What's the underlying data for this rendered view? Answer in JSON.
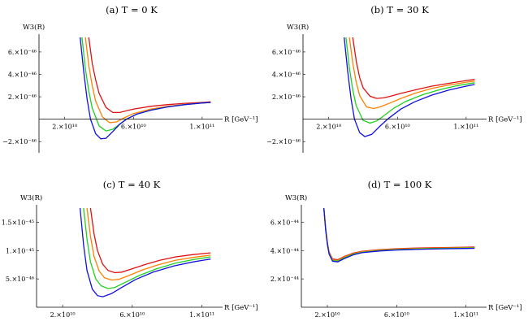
{
  "chart_data": [
    {
      "type": "line",
      "title": "(a) T = 0 K",
      "ylabel": "W3(R)",
      "xlabel": "R [GeV⁻¹]",
      "x_ticks": [
        {
          "value": 20000000000.0,
          "label": "2.×10¹⁰"
        },
        {
          "value": 60000000000.0,
          "label": "6.×10¹⁰"
        },
        {
          "value": 100000000000.0,
          "label": "1.×10¹¹"
        }
      ],
      "y_ticks": [
        {
          "value": -2e-46,
          "label": "−2.×10⁻⁴⁶"
        },
        {
          "value": 2e-46,
          "label": "2.×10⁻⁴⁶"
        },
        {
          "value": 4e-46,
          "label": "4.×10⁻⁴⁶"
        },
        {
          "value": 6e-46,
          "label": "6.×10⁻⁴⁶"
        }
      ],
      "xlim": [
        5000000000.0,
        110000000000.0
      ],
      "ylim": [
        -3e-46,
        7.3e-46
      ],
      "series": [
        {
          "color": "#e01010",
          "x": [
            34000000000.0,
            36000000000.0,
            38000000000.0,
            40000000000.0,
            44000000000.0,
            48000000000.0,
            52000000000.0,
            56000000000.0,
            60000000000.0,
            70000000000.0,
            80000000000.0,
            90000000000.0,
            100000000000.0,
            105000000000.0
          ],
          "y": [
            7.3e-46,
            5e-46,
            3.5e-46,
            2.3e-46,
            1.05e-46,
            6e-47,
            6e-47,
            7.5e-47,
            9e-47,
            1.15e-46,
            1.3e-46,
            1.42e-46,
            1.5e-46,
            1.55e-46
          ]
        },
        {
          "color": "#ff8000",
          "x": [
            32000000000.0,
            34000000000.0,
            36000000000.0,
            38000000000.0,
            42000000000.0,
            46000000000.0,
            50000000000.0,
            55000000000.0,
            60000000000.0,
            70000000000.0,
            80000000000.0,
            90000000000.0,
            100000000000.0,
            105000000000.0
          ],
          "y": [
            7.3e-46,
            4.8e-46,
            3e-46,
            1.6e-46,
            2e-47,
            -3e-47,
            -2.5e-47,
            1.5e-47,
            5e-47,
            9e-47,
            1.15e-46,
            1.32e-46,
            1.45e-46,
            1.5e-46
          ]
        },
        {
          "color": "#20d020",
          "x": [
            30000000000.0,
            32000000000.0,
            34000000000.0,
            36000000000.0,
            40000000000.0,
            44000000000.0,
            48000000000.0,
            52000000000.0,
            56000000000.0,
            62000000000.0,
            70000000000.0,
            80000000000.0,
            90000000000.0,
            100000000000.0,
            105000000000.0
          ],
          "y": [
            7.3e-46,
            4.5e-46,
            2.5e-46,
            1e-46,
            -6e-47,
            -1.05e-46,
            -9e-47,
            -4.5e-47,
            0.0,
            4.5e-47,
            8e-47,
            1.1e-46,
            1.3e-46,
            1.45e-46,
            1.5e-46
          ]
        },
        {
          "color": "#1010e0",
          "x": [
            29000000000.0,
            31000000000.0,
            33000000000.0,
            35000000000.0,
            38000000000.0,
            41000000000.0,
            44000000000.0,
            48000000000.0,
            52000000000.0,
            56000000000.0,
            62000000000.0,
            70000000000.0,
            80000000000.0,
            90000000000.0,
            100000000000.0,
            105000000000.0
          ],
          "y": [
            7.3e-46,
            4.3e-46,
            1.8e-46,
            0.0,
            -1.3e-46,
            -1.75e-46,
            -1.7e-46,
            -1.1e-46,
            -4.5e-47,
            0.0,
            4.5e-47,
            8e-47,
            1.1e-46,
            1.3e-46,
            1.45e-46,
            1.5e-46
          ]
        }
      ]
    },
    {
      "type": "line",
      "title": "(b) T = 30 K",
      "ylabel": "W3(R)",
      "xlabel": "R [GeV⁻¹]",
      "x_ticks": [
        {
          "value": 20000000000.0,
          "label": "2.×10¹⁰"
        },
        {
          "value": 60000000000.0,
          "label": "6.×10¹⁰"
        },
        {
          "value": 100000000000.0,
          "label": "1.×10¹¹"
        }
      ],
      "y_ticks": [
        {
          "value": -2e-46,
          "label": "−2.×10⁻⁴⁶"
        },
        {
          "value": 2e-46,
          "label": "2.×10⁻⁴⁶"
        },
        {
          "value": 4e-46,
          "label": "4.×10⁻⁴⁶"
        },
        {
          "value": 6e-46,
          "label": "6.×10⁻⁴⁶"
        }
      ],
      "xlim": [
        5000000000.0,
        110000000000.0
      ],
      "ylim": [
        -3e-46,
        7.3e-46
      ],
      "series": [
        {
          "color": "#e01010",
          "x": [
            34000000000.0,
            36000000000.0,
            38000000000.0,
            40000000000.0,
            44000000000.0,
            48000000000.0,
            52000000000.0,
            56000000000.0,
            62000000000.0,
            70000000000.0,
            80000000000.0,
            90000000000.0,
            100000000000.0,
            105000000000.0
          ],
          "y": [
            7.3e-46,
            5.2e-46,
            3.7e-46,
            2.8e-46,
            2.05e-46,
            1.85e-46,
            1.9e-46,
            2.05e-46,
            2.3e-46,
            2.6e-46,
            2.95e-46,
            3.2e-46,
            3.45e-46,
            3.55e-46
          ]
        },
        {
          "color": "#ff8000",
          "x": [
            32000000000.0,
            34000000000.0,
            36000000000.0,
            38000000000.0,
            42000000000.0,
            46000000000.0,
            50000000000.0,
            55000000000.0,
            62000000000.0,
            70000000000.0,
            80000000000.0,
            90000000000.0,
            100000000000.0,
            105000000000.0
          ],
          "y": [
            7.3e-46,
            5e-46,
            3.3e-46,
            2.1e-46,
            1.1e-46,
            9.5e-47,
            1.1e-46,
            1.4e-46,
            1.85e-46,
            2.3e-46,
            2.75e-46,
            3.05e-46,
            3.3e-46,
            3.4e-46
          ]
        },
        {
          "color": "#20d020",
          "x": [
            30000000000.0,
            32000000000.0,
            34000000000.0,
            36000000000.0,
            40000000000.0,
            44000000000.0,
            48000000000.0,
            52000000000.0,
            58000000000.0,
            65000000000.0,
            75000000000.0,
            85000000000.0,
            95000000000.0,
            105000000000.0
          ],
          "y": [
            7.3e-46,
            4.6e-46,
            2.6e-46,
            1.2e-46,
            -1e-47,
            -3.5e-47,
            -1.5e-47,
            3e-47,
            1e-46,
            1.6e-46,
            2.2e-46,
            2.65e-46,
            3e-46,
            3.25e-46
          ]
        },
        {
          "color": "#1010e0",
          "x": [
            29000000000.0,
            31000000000.0,
            33000000000.0,
            35000000000.0,
            38000000000.0,
            41000000000.0,
            45000000000.0,
            50000000000.0,
            55000000000.0,
            62000000000.0,
            70000000000.0,
            80000000000.0,
            90000000000.0,
            100000000000.0,
            105000000000.0
          ],
          "y": [
            7.3e-46,
            4.3e-46,
            1.8e-46,
            0.0,
            -1.2e-46,
            -1.55e-46,
            -1.35e-46,
            -6e-47,
            1e-47,
            9e-47,
            1.55e-46,
            2.15e-46,
            2.6e-46,
            2.95e-46,
            3.1e-46
          ]
        }
      ]
    },
    {
      "type": "line",
      "title": "(c) T = 40 K",
      "ylabel": "W3(R)",
      "xlabel": "R [GeV⁻¹]",
      "x_ticks": [
        {
          "value": 20000000000.0,
          "label": "2.×10¹⁰"
        },
        {
          "value": 60000000000.0,
          "label": "6.×10¹⁰"
        },
        {
          "value": 100000000000.0,
          "label": "1.×10¹¹"
        }
      ],
      "y_ticks": [
        {
          "value": 5e-46,
          "label": "5.×10⁻⁴⁶"
        },
        {
          "value": 1e-45,
          "label": "1.×10⁻⁴⁵"
        },
        {
          "value": 1.5e-45,
          "label": "1.5×10⁻⁴⁵"
        }
      ],
      "xlim": [
        5000000000.0,
        110000000000.0
      ],
      "ylim": [
        0,
        1.75e-45
      ],
      "series": [
        {
          "color": "#e01010",
          "x": [
            36000000000.0,
            38000000000.0,
            40000000000.0,
            43000000000.0,
            46000000000.0,
            50000000000.0,
            54000000000.0,
            60000000000.0,
            68000000000.0,
            76000000000.0,
            85000000000.0,
            95000000000.0,
            105000000000.0
          ],
          "y": [
            1.75e-45,
            1.3e-45,
            1e-45,
            7.6e-46,
            6.5e-46,
            6.1e-46,
            6.2e-46,
            6.8e-46,
            7.6e-46,
            8.3e-46,
            8.9e-46,
            9.3e-46,
            9.6e-46
          ]
        },
        {
          "color": "#ff8000",
          "x": [
            34000000000.0,
            36000000000.0,
            38000000000.0,
            41000000000.0,
            44000000000.0,
            48000000000.0,
            52000000000.0,
            58000000000.0,
            66000000000.0,
            75000000000.0,
            85000000000.0,
            95000000000.0,
            105000000000.0
          ],
          "y": [
            1.75e-45,
            1.25e-45,
            9e-46,
            6.4e-46,
            5.2e-46,
            4.8e-46,
            4.9e-46,
            5.6e-46,
            6.6e-46,
            7.5e-46,
            8.3e-46,
            8.8e-46,
            9.2e-46
          ]
        },
        {
          "color": "#20d020",
          "x": [
            32000000000.0,
            34000000000.0,
            36000000000.0,
            39000000000.0,
            42000000000.0,
            46000000000.0,
            50000000000.0,
            56000000000.0,
            64000000000.0,
            74000000000.0,
            85000000000.0,
            95000000000.0,
            105000000000.0
          ],
          "y": [
            1.75e-45,
            1.2e-45,
            8e-46,
            5e-46,
            3.8e-46,
            3.3e-46,
            3.5e-46,
            4.4e-46,
            5.6e-46,
            6.8e-46,
            7.8e-46,
            8.4e-46,
            8.9e-46
          ]
        },
        {
          "color": "#1010e0",
          "x": [
            30000000000.0,
            32000000000.0,
            34000000000.0,
            37000000000.0,
            40000000000.0,
            43000000000.0,
            48000000000.0,
            54000000000.0,
            62000000000.0,
            72000000000.0,
            84000000000.0,
            95000000000.0,
            105000000000.0
          ],
          "y": [
            1.75e-45,
            1.1e-45,
            6.5e-46,
            3.2e-46,
            2.05e-46,
            1.85e-46,
            2.4e-46,
            3.5e-46,
            4.9e-46,
            6.2e-46,
            7.3e-46,
            8e-46,
            8.5e-46
          ]
        }
      ]
    },
    {
      "type": "line",
      "title": "(d) T = 100 K",
      "ylabel": "W3(R)",
      "xlabel": "R [GeV⁻¹]",
      "x_ticks": [
        {
          "value": 20000000000.0,
          "label": "2.×10¹⁰"
        },
        {
          "value": 60000000000.0,
          "label": "6.×10¹⁰"
        },
        {
          "value": 100000000000.0,
          "label": "1.×10¹¹"
        }
      ],
      "y_ticks": [
        {
          "value": 2e-44,
          "label": "2.×10⁻⁴⁴"
        },
        {
          "value": 4e-44,
          "label": "4.×10⁻⁴⁴"
        },
        {
          "value": 6e-44,
          "label": "6.×10⁻⁴⁴"
        }
      ],
      "xlim": [
        5000000000.0,
        110000000000.0
      ],
      "ylim": [
        0,
        7e-44
      ],
      "series": [
        {
          "color": "#e01010",
          "x": [
            18000000000.0,
            19000000000.0,
            20000000000.0,
            21000000000.0,
            23000000000.0,
            26000000000.0,
            30000000000.0,
            35000000000.0,
            40000000000.0,
            50000000000.0,
            60000000000.0,
            70000000000.0,
            80000000000.0,
            90000000000.0,
            100000000000.0,
            105000000000.0
          ],
          "y": [
            7e-44,
            5.6e-44,
            4.6e-44,
            3.9e-44,
            3.4e-44,
            3.35e-44,
            3.6e-44,
            3.82e-44,
            3.95e-44,
            4.07e-44,
            4.13e-44,
            4.17e-44,
            4.2e-44,
            4.22e-44,
            4.24e-44,
            4.25e-44
          ]
        },
        {
          "color": "#ff8000",
          "x": [
            18000000000.0,
            19000000000.0,
            20000000000.0,
            21000000000.0,
            23000000000.0,
            26000000000.0,
            30000000000.0,
            35000000000.0,
            40000000000.0,
            50000000000.0,
            60000000000.0,
            70000000000.0,
            80000000000.0,
            90000000000.0,
            100000000000.0,
            105000000000.0
          ],
          "y": [
            7e-44,
            5.55e-44,
            4.55e-44,
            3.85e-44,
            3.35e-44,
            3.3e-44,
            3.55e-44,
            3.78e-44,
            3.92e-44,
            4.04e-44,
            4.1e-44,
            4.14e-44,
            4.17e-44,
            4.19e-44,
            4.21e-44,
            4.22e-44
          ]
        },
        {
          "color": "#20d020",
          "x": [
            18000000000.0,
            19000000000.0,
            20000000000.0,
            21000000000.0,
            23000000000.0,
            26000000000.0,
            30000000000.0,
            35000000000.0,
            40000000000.0,
            50000000000.0,
            60000000000.0,
            70000000000.0,
            80000000000.0,
            90000000000.0,
            100000000000.0,
            105000000000.0
          ],
          "y": [
            7e-44,
            5.5e-44,
            4.5e-44,
            3.8e-44,
            3.3e-44,
            3.25e-44,
            3.5e-44,
            3.74e-44,
            3.88e-44,
            4e-44,
            4.07e-44,
            4.11e-44,
            4.14e-44,
            4.16e-44,
            4.18e-44,
            4.19e-44
          ]
        },
        {
          "color": "#1010e0",
          "x": [
            18000000000.0,
            19000000000.0,
            20000000000.0,
            21000000000.0,
            23000000000.0,
            26000000000.0,
            30000000000.0,
            35000000000.0,
            40000000000.0,
            50000000000.0,
            60000000000.0,
            70000000000.0,
            80000000000.0,
            90000000000.0,
            100000000000.0,
            105000000000.0
          ],
          "y": [
            7e-44,
            5.45e-44,
            4.45e-44,
            3.75e-44,
            3.25e-44,
            3.2e-44,
            3.45e-44,
            3.7e-44,
            3.85e-44,
            3.97e-44,
            4.04e-44,
            4.08e-44,
            4.11e-44,
            4.13e-44,
            4.15e-44,
            4.16e-44
          ]
        }
      ]
    }
  ]
}
